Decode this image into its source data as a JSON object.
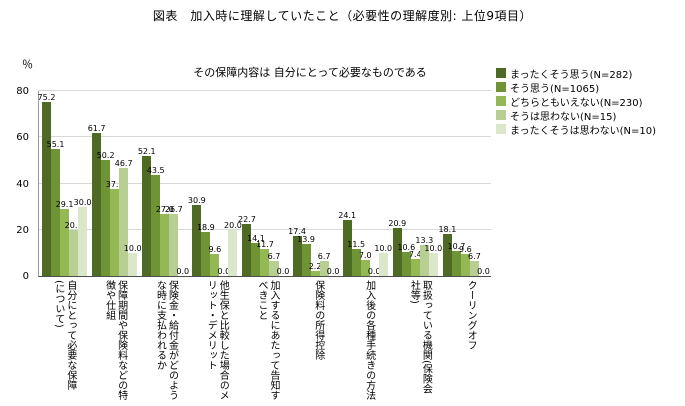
{
  "title": "図表　加入時に理解していたこと（必要性の理解度別: 上位9項目）",
  "chart_data": {
    "type": "bar",
    "title": "図表　加入時に理解していたこと（必要性の理解度別: 上位9項目）",
    "subtitle": "その保障内容は 自分にとって必要なものである",
    "ylabel": "％",
    "ylim": [
      0,
      80
    ],
    "yticks": [
      0,
      20,
      40,
      60,
      80
    ],
    "grid": true,
    "legend_position": "right",
    "categories": [
      "自分にとって必要な保障(について)",
      "保障期間や保険料などの特徴や仕組",
      "保険金・給付金がどのような時に支払われるか",
      "他生保と比較した場合のメリット・デメリット",
      "加入するにあたって告知すべきこと",
      "保険料の所得控除",
      "加入後の各種手続きの方法",
      "取扱っている機関(保険会社等)",
      "クーリングオフ"
    ],
    "series": [
      {
        "name": "まったくそう思う(N=282)",
        "color": "#4f6a25",
        "values": [
          75.2,
          61.7,
          52.1,
          30.9,
          22.7,
          17.4,
          24.1,
          20.9,
          18.1
        ]
      },
      {
        "name": "そう思う(N=1065)",
        "color": "#6f9436",
        "values": [
          55.1,
          50.2,
          43.5,
          18.9,
          14.1,
          13.9,
          11.5,
          10.6,
          10.7
        ]
      },
      {
        "name": "どちらともいえない(N=230)",
        "color": "#94b954",
        "values": [
          29.1,
          37.8,
          27.0,
          9.6,
          11.7,
          2.2,
          7.0,
          7.4,
          9.6
        ]
      },
      {
        "name": "そうは思わない(N=15)",
        "color": "#b8cf93",
        "values": [
          20.0,
          46.7,
          26.7,
          0.0,
          6.7,
          6.7,
          0.0,
          13.3,
          6.7
        ]
      },
      {
        "name": "まったくそうは思わない(N=10)",
        "color": "#dbe7cb",
        "values": [
          30.0,
          10.0,
          0.0,
          20.0,
          0.0,
          0.0,
          10.0,
          10.0,
          0.0
        ]
      }
    ]
  }
}
